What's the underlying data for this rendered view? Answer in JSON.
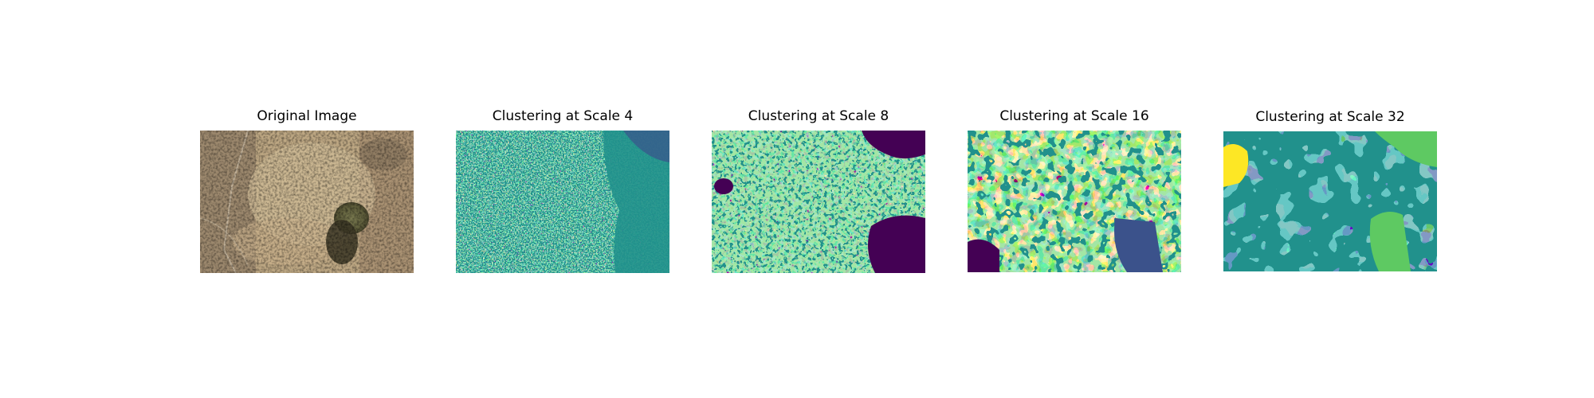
{
  "panels": [
    {
      "title": "Original Image"
    },
    {
      "title": "Clustering at Scale 4"
    },
    {
      "title": "Clustering at Scale 8"
    },
    {
      "title": "Clustering at Scale 16"
    },
    {
      "title": "Clustering at Scale 32"
    }
  ],
  "colors": {
    "viridis_0": "#440154",
    "viridis_1": "#3b528b",
    "viridis_2": "#21918c",
    "viridis_3": "#5ec962",
    "viridis_4": "#fde725",
    "ground_light": "#c6b08e",
    "ground_dark": "#8a7458",
    "shrub": "#6b6a45"
  }
}
